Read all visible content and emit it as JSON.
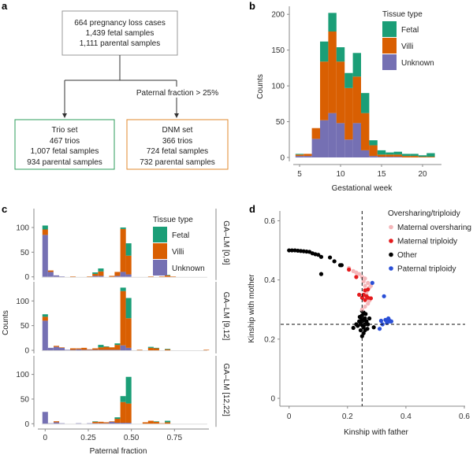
{
  "panels": {
    "a": "a",
    "b": "b",
    "c": "c",
    "d": "d"
  },
  "colors": {
    "fetal": "#1b9e77",
    "villi": "#d95f02",
    "unknown": "#7570b3",
    "maternal_oversharing": "#f4b6b9",
    "maternal_triploidy": "#e41a1c",
    "other": "#000000",
    "paternal_triploidy": "#2a4fd6",
    "trio_border": "#2e9e5b",
    "dnm_border": "#e08a2e",
    "box_border": "#999999"
  },
  "flowchart": {
    "top": [
      "664 pregnancy loss cases",
      "1,439 fetal samples",
      "1,111 parental samples"
    ],
    "edge_label": "Paternal fraction > 25%",
    "trio": [
      "Trio set",
      "467 trios",
      "1,007 fetal samples",
      "934 parental samples"
    ],
    "dnm": [
      "DNM set",
      "366 trios",
      "724 fetal samples",
      "732 parental samples"
    ]
  },
  "chart_data": [
    {
      "panel": "b",
      "type": "bar",
      "stacked": true,
      "xlabel": "Gestational week",
      "ylabel": "Counts",
      "xticks": [
        5,
        10,
        15,
        20
      ],
      "yticks": [
        0,
        50,
        100,
        150,
        200
      ],
      "xlim": [
        4.5,
        21.5
      ],
      "ylim": [
        0,
        210
      ],
      "legend": {
        "title": "Tissue type",
        "placement": "top-right",
        "entries": [
          "Fetal",
          "Villi",
          "Unknown"
        ]
      },
      "x": [
        5,
        6,
        7,
        8,
        9,
        10,
        11,
        12,
        13,
        14,
        15,
        16,
        17,
        18,
        19,
        20,
        21
      ],
      "series": [
        {
          "name": "Unknown",
          "values": [
            2,
            2,
            26,
            52,
            62,
            48,
            25,
            48,
            10,
            2,
            1,
            1,
            1,
            0,
            0,
            0,
            0
          ]
        },
        {
          "name": "Villi",
          "values": [
            2,
            3,
            15,
            82,
            114,
            86,
            72,
            65,
            52,
            15,
            3,
            3,
            3,
            2,
            2,
            1,
            1
          ]
        },
        {
          "name": "Fetal",
          "values": [
            1,
            0,
            0,
            28,
            26,
            20,
            21,
            33,
            28,
            7,
            6,
            3,
            4,
            3,
            3,
            2,
            5
          ]
        }
      ]
    },
    {
      "panel": "c",
      "type": "bar",
      "stacked": true,
      "xlabel": "Paternal fraction",
      "ylabel": "Counts",
      "xticks": [
        "0",
        "0.25",
        "0.50",
        "0.75"
      ],
      "yticks": [
        0,
        50,
        100
      ],
      "xlim": [
        -0.03,
        0.95
      ],
      "ylim": [
        0,
        130
      ],
      "bin_width": 0.0323,
      "legend": {
        "title": "Tissue type",
        "placement": "top-right",
        "entries": [
          "Fetal",
          "Villi",
          "Unknown"
        ]
      },
      "facets": [
        {
          "label": "GA–LM [0,9]",
          "bins": [
            {
              "x": 0,
              "unknown": 85,
              "villi": 11,
              "fetal": 8
            },
            {
              "x": 0.032,
              "unknown": 10,
              "villi": 3,
              "fetal": 0
            },
            {
              "x": 0.065,
              "unknown": 3,
              "villi": 0,
              "fetal": 0
            },
            {
              "x": 0.097,
              "unknown": 1,
              "villi": 0,
              "fetal": 0
            },
            {
              "x": 0.161,
              "unknown": 0,
              "villi": 1,
              "fetal": 0
            },
            {
              "x": 0.258,
              "unknown": 0,
              "villi": 1,
              "fetal": 0
            },
            {
              "x": 0.29,
              "unknown": 2,
              "villi": 4,
              "fetal": 3
            },
            {
              "x": 0.323,
              "unknown": 2,
              "villi": 9,
              "fetal": 6
            },
            {
              "x": 0.387,
              "unknown": 0,
              "villi": 2,
              "fetal": 0
            },
            {
              "x": 0.419,
              "unknown": 2,
              "villi": 8,
              "fetal": 0
            },
            {
              "x": 0.452,
              "unknown": 10,
              "villi": 87,
              "fetal": 3
            },
            {
              "x": 0.484,
              "unknown": 5,
              "villi": 38,
              "fetal": 25
            },
            {
              "x": 0.613,
              "unknown": 0,
              "villi": 1,
              "fetal": 0
            },
            {
              "x": 0.677,
              "unknown": 0,
              "villi": 1,
              "fetal": 0
            },
            {
              "x": 0.71,
              "unknown": 0,
              "villi": 3,
              "fetal": 1
            },
            {
              "x": 0.742,
              "unknown": 0,
              "villi": 1,
              "fetal": 0
            }
          ]
        },
        {
          "label": "GA–LM [9,12]",
          "bins": [
            {
              "x": 0,
              "unknown": 60,
              "villi": 8,
              "fetal": 5
            },
            {
              "x": 0.032,
              "unknown": 5,
              "villi": 0,
              "fetal": 0
            },
            {
              "x": 0.065,
              "unknown": 7,
              "villi": 2,
              "fetal": 0
            },
            {
              "x": 0.097,
              "unknown": 5,
              "villi": 1,
              "fetal": 0
            },
            {
              "x": 0.129,
              "unknown": 1,
              "villi": 0,
              "fetal": 0
            },
            {
              "x": 0.161,
              "unknown": 1,
              "villi": 3,
              "fetal": 0
            },
            {
              "x": 0.194,
              "unknown": 2,
              "villi": 2,
              "fetal": 0
            },
            {
              "x": 0.226,
              "unknown": 1,
              "villi": 4,
              "fetal": 0
            },
            {
              "x": 0.258,
              "unknown": 1,
              "villi": 1,
              "fetal": 0
            },
            {
              "x": 0.29,
              "unknown": 1,
              "villi": 3,
              "fetal": 0
            },
            {
              "x": 0.323,
              "unknown": 1,
              "villi": 5,
              "fetal": 5
            },
            {
              "x": 0.355,
              "unknown": 1,
              "villi": 6,
              "fetal": 1
            },
            {
              "x": 0.387,
              "unknown": 1,
              "villi": 5,
              "fetal": 0
            },
            {
              "x": 0.419,
              "unknown": 1,
              "villi": 10,
              "fetal": 3
            },
            {
              "x": 0.452,
              "unknown": 10,
              "villi": 110,
              "fetal": 7
            },
            {
              "x": 0.484,
              "unknown": 5,
              "villi": 60,
              "fetal": 41
            },
            {
              "x": 0.548,
              "unknown": 0,
              "villi": 1,
              "fetal": 0
            },
            {
              "x": 0.613,
              "unknown": 0,
              "villi": 5,
              "fetal": 2
            },
            {
              "x": 0.645,
              "unknown": 0,
              "villi": 4,
              "fetal": 1
            },
            {
              "x": 0.71,
              "unknown": 0,
              "villi": 2,
              "fetal": 1
            },
            {
              "x": 0.935,
              "unknown": 0,
              "villi": 1,
              "fetal": 0
            }
          ]
        },
        {
          "label": "GA–LM [12,22]",
          "bins": [
            {
              "x": 0,
              "unknown": 24,
              "villi": 0,
              "fetal": 0
            },
            {
              "x": 0.032,
              "unknown": 1,
              "villi": 0,
              "fetal": 0
            },
            {
              "x": 0.065,
              "unknown": 3,
              "villi": 2,
              "fetal": 0
            },
            {
              "x": 0.097,
              "unknown": 1,
              "villi": 0,
              "fetal": 0
            },
            {
              "x": 0.194,
              "unknown": 1,
              "villi": 0,
              "fetal": 0
            },
            {
              "x": 0.258,
              "unknown": 1,
              "villi": 0,
              "fetal": 0
            },
            {
              "x": 0.29,
              "unknown": 1,
              "villi": 3,
              "fetal": 1
            },
            {
              "x": 0.323,
              "unknown": 1,
              "villi": 3,
              "fetal": 0
            },
            {
              "x": 0.355,
              "unknown": 1,
              "villi": 2,
              "fetal": 0
            },
            {
              "x": 0.387,
              "unknown": 4,
              "villi": 1,
              "fetal": 0
            },
            {
              "x": 0.419,
              "unknown": 2,
              "villi": 8,
              "fetal": 3
            },
            {
              "x": 0.452,
              "unknown": 2,
              "villi": 42,
              "fetal": 12
            },
            {
              "x": 0.484,
              "unknown": 2,
              "villi": 39,
              "fetal": 54
            },
            {
              "x": 0.581,
              "unknown": 0,
              "villi": 3,
              "fetal": 0
            },
            {
              "x": 0.613,
              "unknown": 0,
              "villi": 6,
              "fetal": 0
            },
            {
              "x": 0.645,
              "unknown": 0,
              "villi": 4,
              "fetal": 1
            },
            {
              "x": 0.677,
              "unknown": 0,
              "villi": 1,
              "fetal": 0
            },
            {
              "x": 0.71,
              "unknown": 0,
              "villi": 3,
              "fetal": 3
            }
          ]
        }
      ]
    },
    {
      "panel": "d",
      "type": "scatter",
      "xlabel": "Kinship with father",
      "ylabel": "Kinship with mother",
      "xticks": [
        "0",
        "0.2",
        "0.4",
        "0.6"
      ],
      "yticks": [
        "0",
        "0.2",
        "0.4",
        "0.6"
      ],
      "xlim": [
        -0.03,
        0.62
      ],
      "ylim": [
        -0.03,
        0.63
      ],
      "reference_lines": {
        "x": 0.25,
        "y": 0.25,
        "style": "dashed"
      },
      "legend": {
        "title": "Oversharing/triploidy",
        "placement": "top-right",
        "entries": [
          "Maternal oversharing",
          "Maternal triploidy",
          "Other",
          "Paternal triploidy"
        ]
      },
      "series": [
        {
          "name": "Maternal oversharing",
          "key": "maternal_oversharing",
          "points": [
            [
              0.205,
              0.44
            ],
            [
              0.22,
              0.43
            ],
            [
              0.23,
              0.425
            ],
            [
              0.24,
              0.42
            ],
            [
              0.25,
              0.41
            ],
            [
              0.26,
              0.405
            ],
            [
              0.27,
              0.39
            ],
            [
              0.26,
              0.38
            ],
            [
              0.275,
              0.375
            ],
            [
              0.265,
              0.36
            ],
            [
              0.27,
              0.32
            ],
            [
              0.26,
              0.31
            ],
            [
              0.25,
              0.3
            ],
            [
              0.28,
              0.38
            ],
            [
              0.265,
              0.35
            ],
            [
              0.255,
              0.395
            ],
            [
              0.275,
              0.33
            ]
          ]
        },
        {
          "name": "Maternal triploidy",
          "key": "maternal_triploidy",
          "points": [
            [
              0.205,
              0.435
            ],
            [
              0.23,
              0.41
            ],
            [
              0.24,
              0.35
            ],
            [
              0.25,
              0.34
            ],
            [
              0.26,
              0.365
            ],
            [
              0.27,
              0.368
            ],
            [
              0.27,
              0.34
            ],
            [
              0.28,
              0.338
            ],
            [
              0.26,
              0.332
            ],
            [
              0.265,
              0.345
            ],
            [
              0.255,
              0.35
            ]
          ]
        },
        {
          "name": "Other",
          "key": "other",
          "points": [
            [
              0,
              0.5
            ],
            [
              0.01,
              0.5
            ],
            [
              0.02,
              0.5
            ],
            [
              0.03,
              0.499
            ],
            [
              0.04,
              0.498
            ],
            [
              0.05,
              0.497
            ],
            [
              0.06,
              0.496
            ],
            [
              0.07,
              0.495
            ],
            [
              0.08,
              0.49
            ],
            [
              0.09,
              0.487
            ],
            [
              0.1,
              0.485
            ],
            [
              0.11,
              0.478
            ],
            [
              0.14,
              0.476
            ],
            [
              0.155,
              0.463
            ],
            [
              0.175,
              0.45
            ],
            [
              0.18,
              0.45
            ],
            [
              0.11,
              0.42
            ],
            [
              0.22,
              0.238
            ],
            [
              0.29,
              0.24
            ],
            [
              0.245,
              0.25
            ],
            [
              0.25,
              0.26
            ],
            [
              0.255,
              0.24
            ],
            [
              0.26,
              0.27
            ],
            [
              0.25,
              0.28
            ],
            [
              0.245,
              0.23
            ],
            [
              0.255,
              0.22
            ],
            [
              0.26,
              0.25
            ],
            [
              0.265,
              0.26
            ],
            [
              0.24,
              0.26
            ],
            [
              0.25,
              0.21
            ],
            [
              0.255,
              0.29
            ],
            [
              0.27,
              0.25
            ],
            [
              0.235,
              0.245
            ],
            [
              0.26,
              0.23
            ],
            [
              0.248,
              0.27
            ],
            [
              0.262,
              0.285
            ],
            [
              0.242,
              0.275
            ],
            [
              0.268,
              0.235
            ],
            [
              0.252,
              0.245
            ],
            [
              0.258,
              0.265
            ],
            [
              0.23,
              0.25
            ],
            [
              0.275,
              0.27
            ],
            [
              0.25,
              0.295
            ]
          ]
        },
        {
          "name": "Paternal triploidy",
          "key": "paternal_triploidy",
          "points": [
            [
              0.285,
              0.39
            ],
            [
              0.325,
              0.345
            ],
            [
              0.31,
              0.235
            ],
            [
              0.315,
              0.262
            ],
            [
              0.32,
              0.25
            ],
            [
              0.33,
              0.265
            ],
            [
              0.34,
              0.27
            ],
            [
              0.345,
              0.26
            ],
            [
              0.35,
              0.26
            ],
            [
              0.335,
              0.255
            ],
            [
              0.342,
              0.265
            ]
          ]
        }
      ]
    }
  ]
}
